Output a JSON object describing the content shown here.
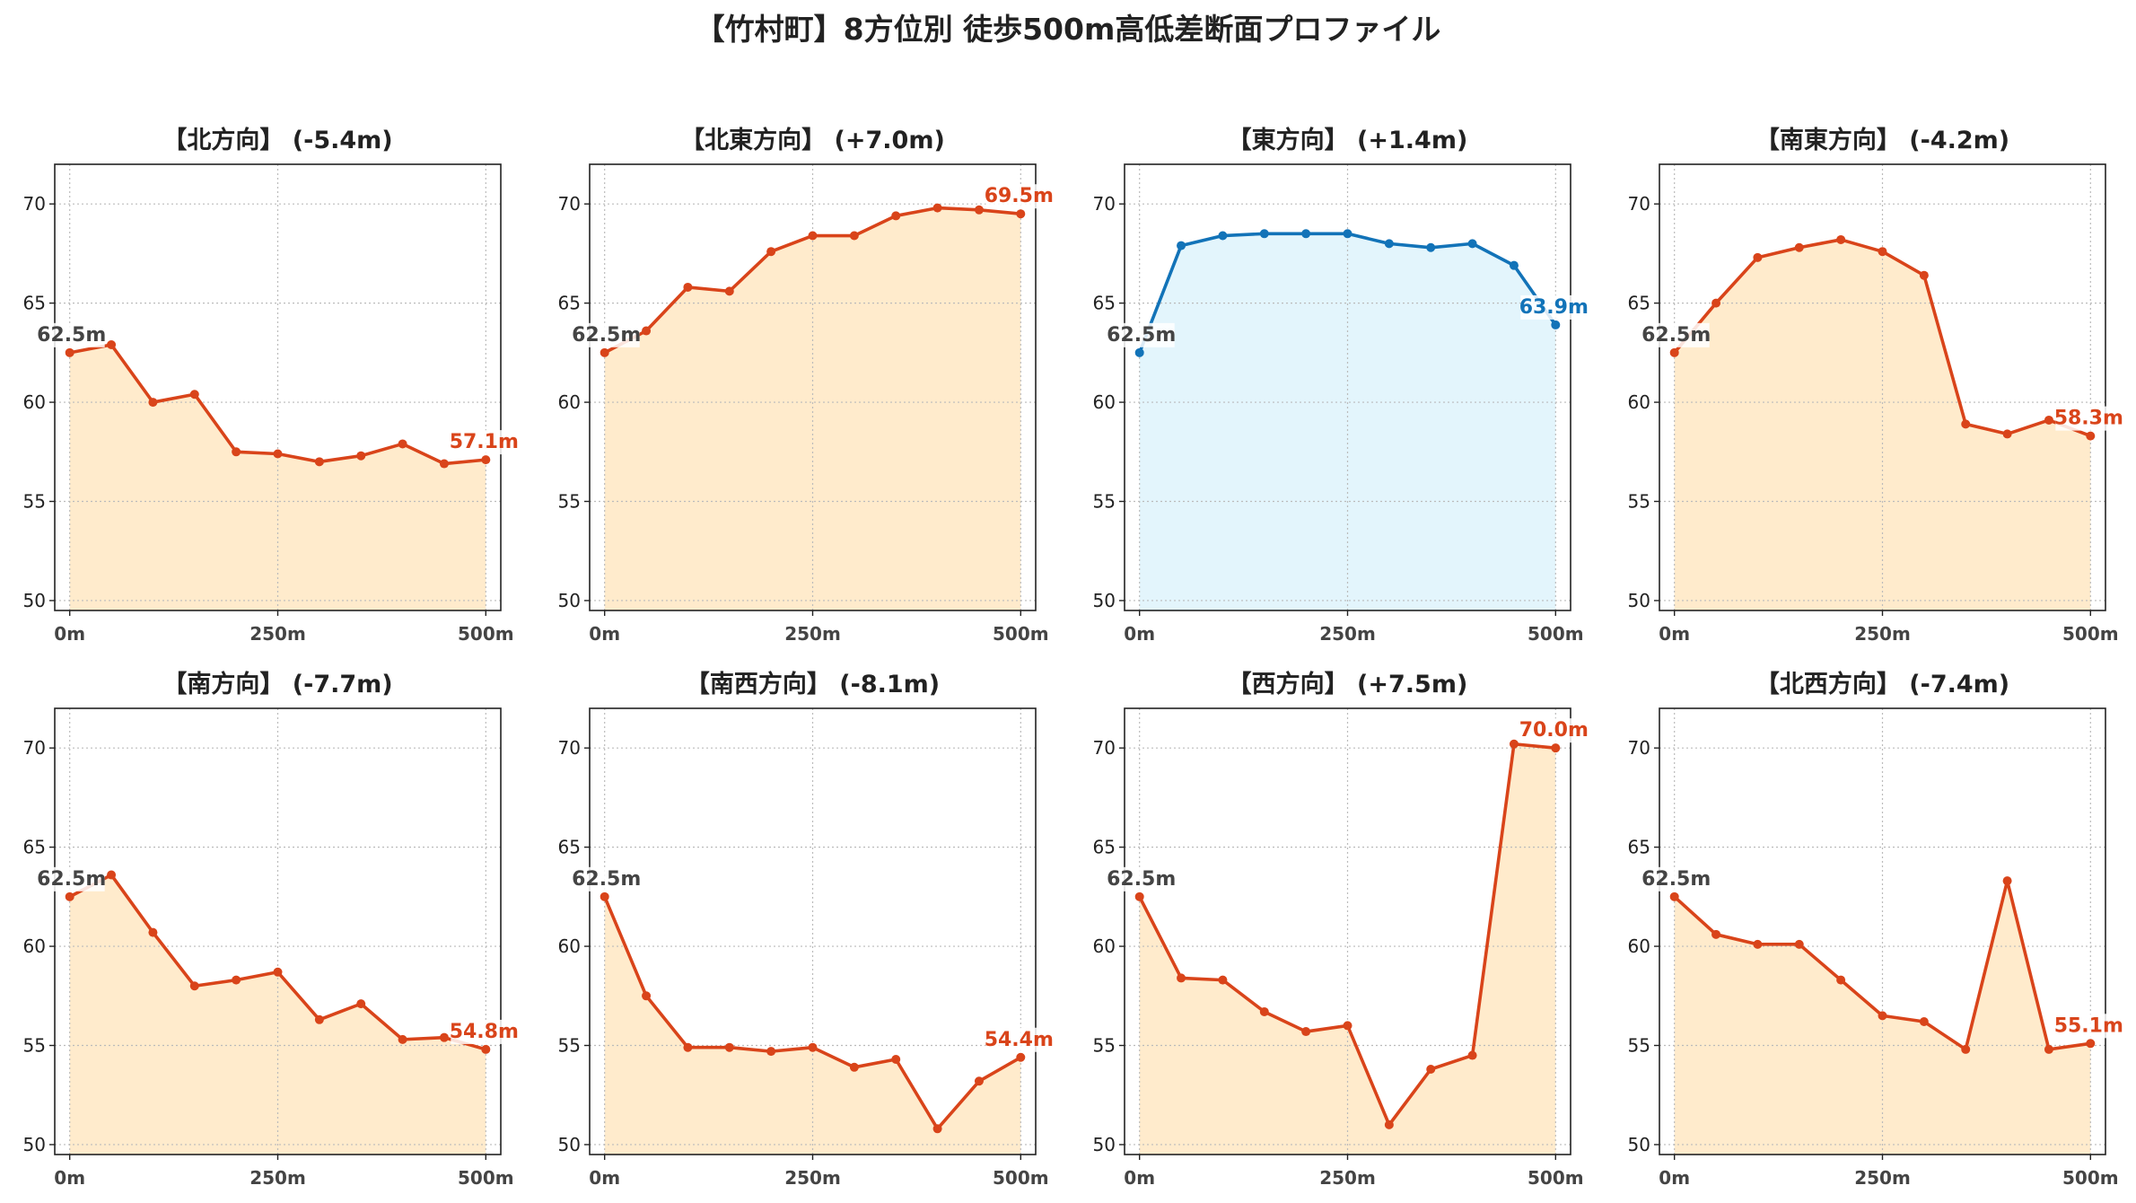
{
  "title": "【竹村町】8方位別 徒歩500m高低差断面プロファイル",
  "chart_data": [
    {
      "type": "line",
      "title": "【北方向】 (-5.4m)",
      "color": "#d9441a",
      "fill": "#ffebcc",
      "x": [
        0,
        50,
        100,
        150,
        200,
        250,
        300,
        350,
        400,
        450,
        500
      ],
      "values": [
        62.5,
        62.9,
        60.0,
        60.4,
        57.5,
        57.4,
        57.0,
        57.3,
        57.9,
        56.9,
        57.1
      ],
      "start_label": "62.5m",
      "end_label": "57.1m"
    },
    {
      "type": "line",
      "title": "【北東方向】 (+7.0m)",
      "color": "#d9441a",
      "fill": "#ffebcc",
      "x": [
        0,
        50,
        100,
        150,
        200,
        250,
        300,
        350,
        400,
        450,
        500
      ],
      "values": [
        62.5,
        63.6,
        65.8,
        65.6,
        67.6,
        68.4,
        68.4,
        69.4,
        69.8,
        69.7,
        69.5
      ],
      "start_label": "62.5m",
      "end_label": "69.5m"
    },
    {
      "type": "line",
      "title": "【東方向】 (+1.4m)",
      "color": "#1273b8",
      "fill": "#e3f5fc",
      "x": [
        0,
        50,
        100,
        150,
        200,
        250,
        300,
        350,
        400,
        450,
        500
      ],
      "values": [
        62.5,
        67.9,
        68.4,
        68.5,
        68.5,
        68.5,
        68.0,
        67.8,
        68.0,
        66.9,
        63.9
      ],
      "start_label": "62.5m",
      "end_label": "63.9m"
    },
    {
      "type": "line",
      "title": "【南東方向】 (-4.2m)",
      "color": "#d9441a",
      "fill": "#ffebcc",
      "x": [
        0,
        50,
        100,
        150,
        200,
        250,
        300,
        350,
        400,
        450,
        500
      ],
      "values": [
        62.5,
        65.0,
        67.3,
        67.8,
        68.2,
        67.6,
        66.4,
        58.9,
        58.4,
        59.1,
        58.3
      ],
      "start_label": "62.5m",
      "end_label": "58.3m"
    },
    {
      "type": "line",
      "title": "【南方向】 (-7.7m)",
      "color": "#d9441a",
      "fill": "#ffebcc",
      "x": [
        0,
        50,
        100,
        150,
        200,
        250,
        300,
        350,
        400,
        450,
        500
      ],
      "values": [
        62.5,
        63.6,
        60.7,
        58.0,
        58.3,
        58.7,
        56.3,
        57.1,
        55.3,
        55.4,
        54.8
      ],
      "start_label": "62.5m",
      "end_label": "54.8m"
    },
    {
      "type": "line",
      "title": "【南西方向】 (-8.1m)",
      "color": "#d9441a",
      "fill": "#ffebcc",
      "x": [
        0,
        50,
        100,
        150,
        200,
        250,
        300,
        350,
        400,
        450,
        500
      ],
      "values": [
        62.5,
        57.5,
        54.9,
        54.9,
        54.7,
        54.9,
        53.9,
        54.3,
        50.8,
        53.2,
        54.4
      ],
      "start_label": "62.5m",
      "end_label": "54.4m"
    },
    {
      "type": "line",
      "title": "【西方向】 (+7.5m)",
      "color": "#d9441a",
      "fill": "#ffebcc",
      "x": [
        0,
        50,
        100,
        150,
        200,
        250,
        300,
        350,
        400,
        450,
        500
      ],
      "values": [
        62.5,
        58.4,
        58.3,
        56.7,
        55.7,
        56.0,
        51.0,
        53.8,
        54.5,
        70.2,
        70.0
      ],
      "start_label": "62.5m",
      "end_label": "70.0m"
    },
    {
      "type": "line",
      "title": "【北西方向】 (-7.4m)",
      "color": "#d9441a",
      "fill": "#ffebcc",
      "x": [
        0,
        50,
        100,
        150,
        200,
        250,
        300,
        350,
        400,
        450,
        500
      ],
      "values": [
        62.5,
        60.6,
        60.1,
        60.1,
        58.3,
        56.5,
        56.2,
        54.8,
        63.3,
        54.8,
        55.1
      ],
      "start_label": "62.5m",
      "end_label": "55.1m"
    }
  ],
  "axes": {
    "ylim": [
      49.5,
      72.0
    ],
    "xlim": [
      -18,
      518
    ],
    "yticks": [
      "50",
      "55",
      "60",
      "65",
      "70"
    ],
    "ytick_values": [
      50,
      55,
      60,
      65,
      70
    ],
    "xticks": [
      "0m",
      "250m",
      "500m"
    ],
    "xtick_values": [
      0,
      250,
      500
    ],
    "grid": true
  }
}
